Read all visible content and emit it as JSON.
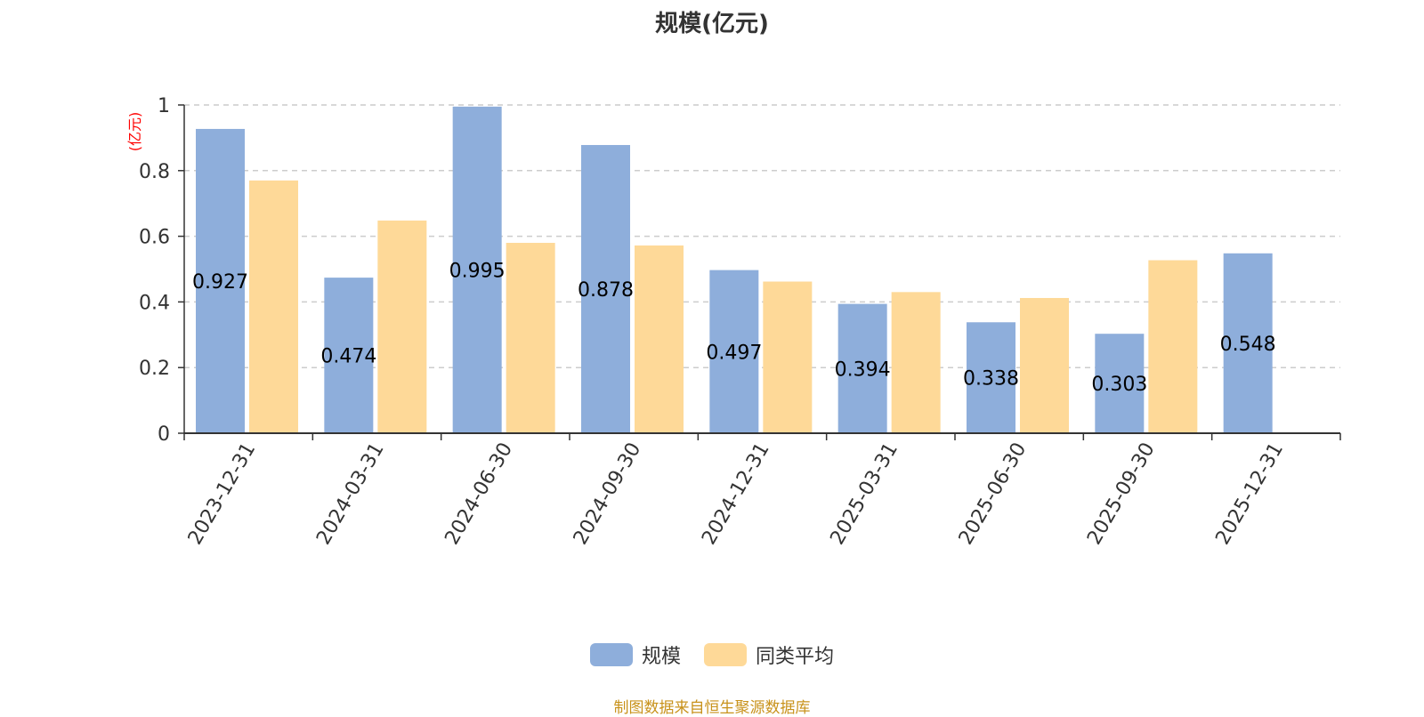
{
  "chart_data": {
    "type": "bar",
    "title": "规模(亿元)",
    "ylabel": "(亿元)",
    "ylim": [
      0,
      1
    ],
    "yticks": [
      "0",
      "0.2",
      "0.4",
      "0.6",
      "0.8",
      "1"
    ],
    "grid": true,
    "legend_position": "bottom",
    "categories": [
      "2023-12-31",
      "2024-03-31",
      "2024-06-30",
      "2024-09-30",
      "2024-12-31",
      "2025-03-31",
      "2025-06-30",
      "2025-09-30",
      "2025-12-31"
    ],
    "series": [
      {
        "name": "规模",
        "color": "#8eaedb",
        "values": [
          0.927,
          0.474,
          0.995,
          0.878,
          0.497,
          0.394,
          0.338,
          0.303,
          0.548
        ],
        "labels": [
          "0.927",
          "0.474",
          "0.995",
          "0.878",
          "0.497",
          "0.394",
          "0.338",
          "0.303",
          "0.548"
        ]
      },
      {
        "name": "同类平均",
        "color": "#fed998",
        "values": [
          0.77,
          0.648,
          0.58,
          0.572,
          0.462,
          0.43,
          0.412,
          0.527,
          null
        ]
      }
    ]
  },
  "source_note": "制图数据来自恒生聚源数据库"
}
